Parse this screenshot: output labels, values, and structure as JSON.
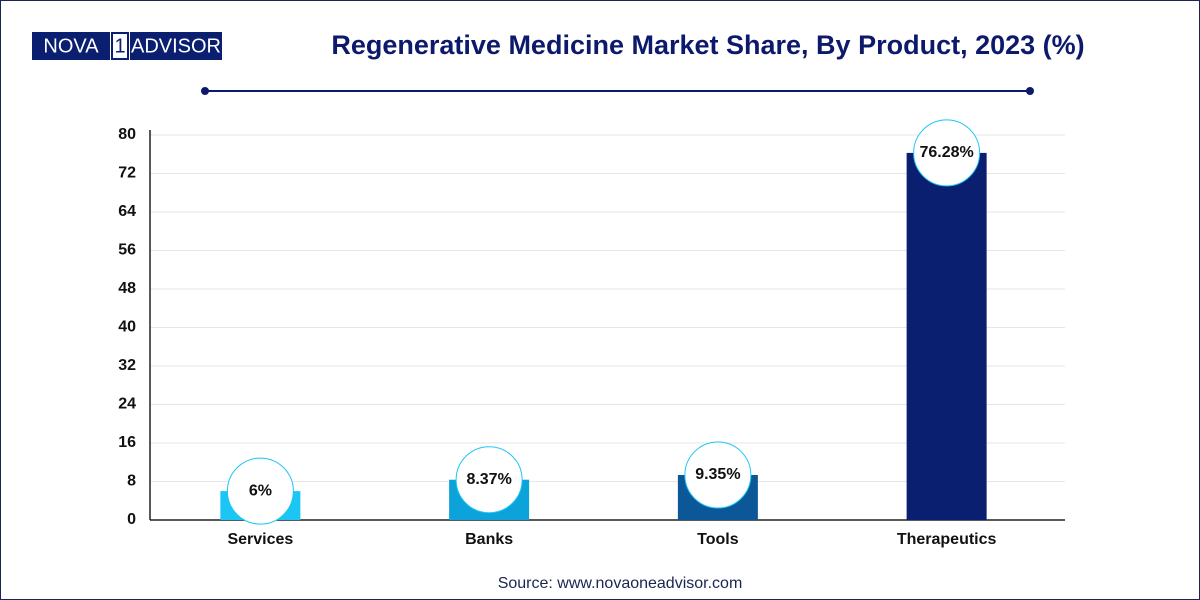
{
  "logo": {
    "left": "NOVA",
    "mark": "1",
    "right": "ADVISOR"
  },
  "chart_data": {
    "type": "bar",
    "title": "Regenerative Medicine Market Share, By Product, 2023 (%)",
    "categories": [
      "Services",
      "Banks",
      "Tools",
      "Therapeutics"
    ],
    "values": [
      6,
      8.37,
      9.35,
      76.28
    ],
    "value_labels": [
      "6%",
      "8.37%",
      "9.35%",
      "76.28%"
    ],
    "colors": [
      "#1cc6f4",
      "#0ba3d9",
      "#0b5798",
      "#0a1f70"
    ],
    "ylim": [
      0,
      80
    ],
    "yticks": [
      0,
      8,
      16,
      24,
      32,
      40,
      48,
      56,
      64,
      72,
      80
    ],
    "grid": true
  },
  "source": "Source: www.novaoneadvisor.com"
}
